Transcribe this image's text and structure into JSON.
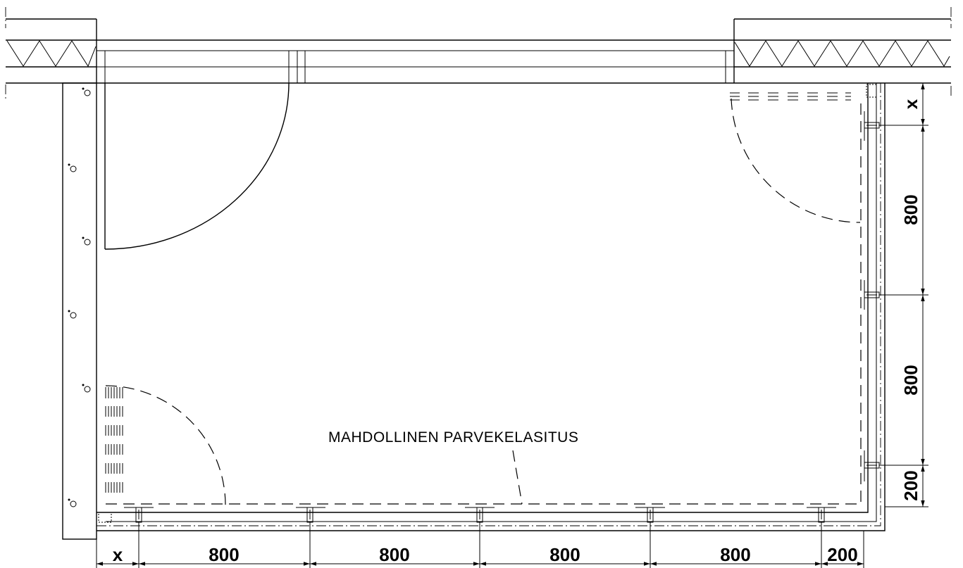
{
  "label": "MAHDOLLINEN PARVEKELASITUS",
  "bottom_dimensions": [
    "x",
    "800",
    "800",
    "800",
    "800",
    "200"
  ],
  "right_dimensions": [
    "x",
    "800",
    "800",
    "200"
  ]
}
